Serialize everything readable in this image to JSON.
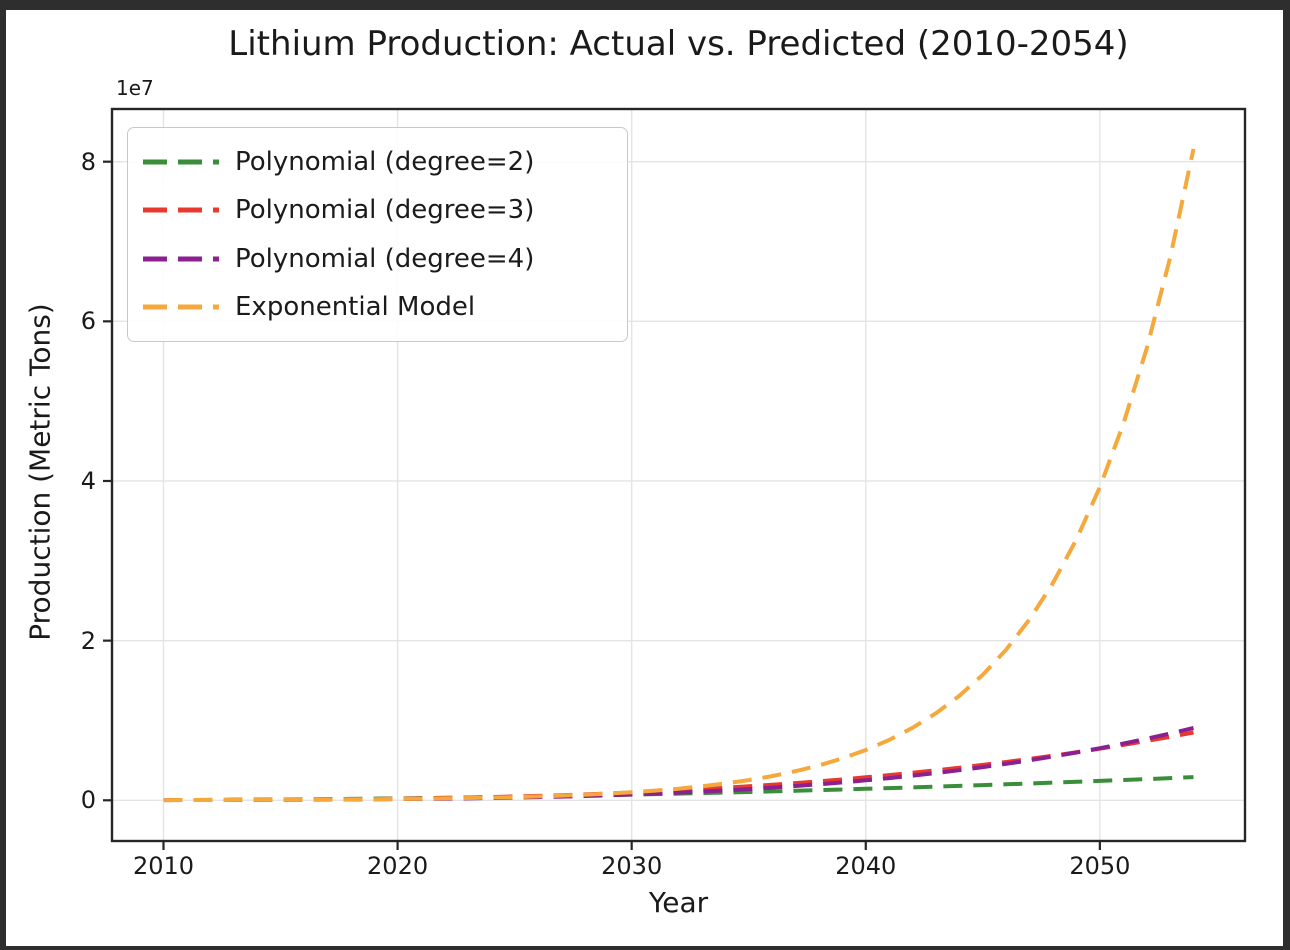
{
  "window": {
    "frame_color": "#2e2e2e",
    "figure_background": "#ffffff"
  },
  "chart_data": {
    "type": "line",
    "title": "Lithium Production: Actual vs. Predicted (2010-2054)",
    "xlabel": "Year",
    "ylabel": "Production (Metric Tons)",
    "y_offset_label": "1e7",
    "grid": true,
    "legend_position": "upper left",
    "xlim": [
      2007.8,
      2056.2
    ],
    "ylim": [
      -5100000,
      86600000
    ],
    "x_ticks": [
      2010,
      2020,
      2030,
      2040,
      2050
    ],
    "y_ticks": [
      0,
      20000000,
      40000000,
      60000000,
      80000000
    ],
    "y_tick_labels": [
      "0",
      "2",
      "4",
      "6",
      "8"
    ],
    "x": [
      2010,
      2011,
      2012,
      2013,
      2014,
      2015,
      2016,
      2017,
      2018,
      2019,
      2020,
      2021,
      2022,
      2023,
      2024,
      2025,
      2026,
      2027,
      2028,
      2029,
      2030,
      2031,
      2032,
      2033,
      2034,
      2035,
      2036,
      2037,
      2038,
      2039,
      2040,
      2041,
      2042,
      2043,
      2044,
      2045,
      2046,
      2047,
      2048,
      2049,
      2050,
      2051,
      2052,
      2053,
      2054
    ],
    "series": [
      {
        "name": "Polynomial (degree=2)",
        "color": "#3a8e3a",
        "linestyle": "dashed",
        "values": [
          30000,
          39300,
          51200,
          65700,
          82800,
          102500,
          124800,
          149800,
          177300,
          207400,
          240100,
          275400,
          313300,
          353900,
          397000,
          442700,
          491100,
          542000,
          595500,
          651700,
          710400,
          771700,
          835700,
          902200,
          971400,
          1043100,
          1117500,
          1194400,
          1274000,
          1356100,
          1440900,
          1528200,
          1618200,
          1710700,
          1805800,
          1903600,
          2003900,
          2106800,
          2212300,
          2320400,
          2431100,
          2544400,
          2660200,
          2778700,
          2899700
        ]
      },
      {
        "name": "Polynomial (degree=3)",
        "color": "#e8392e",
        "linestyle": "dashed",
        "values": [
          28000,
          33390,
          39920,
          48130,
          58560,
          71750,
          88240,
          108570,
          133280,
          162910,
          198000,
          239090,
          286720,
          341430,
          403760,
          474250,
          553440,
          641870,
          740080,
          848610,
          968000,
          1098790,
          1241520,
          1396730,
          1564960,
          1746750,
          1942640,
          2153170,
          2378880,
          2620310,
          2878000,
          3152490,
          3444320,
          3754030,
          4082160,
          4429250,
          4795840,
          5182470,
          5589680,
          6018010,
          6468000,
          6940190,
          7435120,
          7953330,
          8495360
        ]
      },
      {
        "name": "Polynomial (degree=4)",
        "color": "#8b2091",
        "linestyle": "dashed",
        "values": [
          30000,
          34241,
          39142,
          44989,
          52106,
          60844,
          71590,
          84761,
          100810,
          120217,
          143500,
          171206,
          203914,
          242237,
          286822,
          338344,
          397518,
          465087,
          541830,
          628560,
          726000,
          835189,
          956966,
          1092265,
          1242058,
          1407344,
          1589158,
          1788562,
          2006666,
          2244682,
          2503500,
          2784593,
          3089098,
          3418273,
          3773414,
          4155844,
          4566922,
          5008039,
          5480614,
          5986106,
          6526000,
          7101817,
          7715110,
          8367541,
          9060490
        ]
      },
      {
        "name": "Exponential Model",
        "color": "#f5a83b",
        "linestyle": "dashed",
        "values": [
          26000,
          31220,
          37490,
          45020,
          54060,
          64920,
          77960,
          93610,
          112400,
          135000,
          162100,
          194700,
          233700,
          280700,
          337000,
          404700,
          486000,
          583600,
          700700,
          841500,
          1010000,
          1213000,
          1457000,
          1750000,
          2101000,
          2523000,
          3029000,
          3638000,
          4368000,
          5245000,
          6299000,
          7563000,
          9082000,
          10905000,
          13095000,
          15724000,
          18880000,
          22671000,
          27223000,
          32689000,
          39252000,
          47133000,
          56596000,
          67959000,
          81604000
        ]
      }
    ],
    "style": {
      "grid_color": "#e4e4e4",
      "spine_color": "#262626",
      "text_color": "#1a1a1a",
      "line_width": 4,
      "dash_pattern": [
        19,
        11
      ]
    }
  }
}
